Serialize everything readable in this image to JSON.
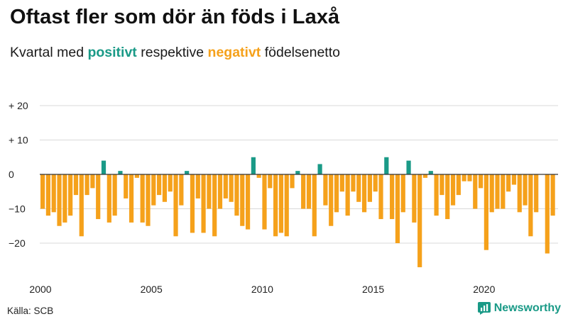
{
  "title": "Oftast fler som dör än föds i Laxå",
  "subtitle": {
    "prefix": "Kvartal med",
    "positive_word": "positivt",
    "middle": "respektive",
    "negative_word": "negativt",
    "suffix": "födelsenetto"
  },
  "source": "Källa: SCB",
  "brand": {
    "name": "Newsworthy",
    "icon": "newsworthy-logo-icon",
    "color": "#1a9a87"
  },
  "colors": {
    "positive": "#1a9a87",
    "negative": "#f5a11b",
    "grid": "#d9d9d9",
    "zero": "#333333"
  },
  "chart_data": {
    "type": "bar",
    "title": "Oftast fler som dör än föds i Laxå",
    "xlabel": "",
    "ylabel": "",
    "ylim": [
      -28,
      20
    ],
    "yticks": [
      {
        "value": 20,
        "label": "+ 20"
      },
      {
        "value": 10,
        "label": "+ 10"
      },
      {
        "value": 0,
        "label": "0"
      },
      {
        "value": -10,
        "label": "−10"
      },
      {
        "value": -20,
        "label": "−20"
      }
    ],
    "xticks": [
      {
        "year": 2000,
        "label": "2000"
      },
      {
        "year": 2005,
        "label": "2005"
      },
      {
        "year": 2010,
        "label": "2010"
      },
      {
        "year": 2015,
        "label": "2015"
      },
      {
        "year": 2020,
        "label": "2020"
      }
    ],
    "start_year": 2000,
    "quarters_per_year": 4,
    "values": [
      -10,
      -12,
      -11,
      -15,
      -14,
      -12,
      -6,
      -18,
      -6,
      -4,
      -13,
      4,
      -14,
      -12,
      1,
      -7,
      -14,
      -1,
      -14,
      -15,
      -9,
      -6,
      -8,
      -5,
      -18,
      -9,
      1,
      -17,
      -7,
      -17,
      -10,
      -18,
      -10,
      -7,
      -8,
      -12,
      -15,
      -16,
      5,
      -1,
      -16,
      -4,
      -18,
      -17,
      -18,
      -4,
      1,
      -10,
      -10,
      -18,
      3,
      -9,
      -15,
      -11,
      -5,
      -12,
      -5,
      -8,
      -11,
      -8,
      -5,
      -13,
      5,
      -13,
      -20,
      -11,
      4,
      -14,
      -27,
      -1,
      1,
      -12,
      -6,
      -13,
      -9,
      -6,
      -2,
      -2,
      -10,
      -4,
      -22,
      -11,
      -10,
      -10,
      -5,
      -3,
      -11,
      -9,
      -18,
      -11,
      0,
      -23,
      -12
    ]
  }
}
